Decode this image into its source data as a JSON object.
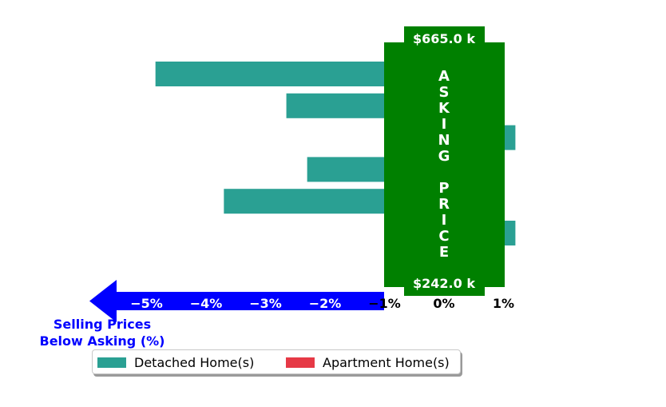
{
  "chart_data": {
    "type": "bar",
    "orientation": "horizontal",
    "xlim": [
      -5.5,
      1.2
    ],
    "x_ticks": [
      -5,
      -4,
      -3,
      -2,
      -1,
      0,
      1
    ],
    "x_tick_labels": [
      "−5%",
      "−4%",
      "−3%",
      "−2%",
      "−1%",
      "0%",
      "1%"
    ],
    "series": [
      {
        "name": "Detached Home(s)",
        "color": "#2aa093",
        "values": [
          -4.85,
          -2.65,
          1.2,
          -2.3,
          -3.7,
          1.2,
          null
        ]
      },
      {
        "name": "Apartment Home(s)",
        "color": "#e63946",
        "values": [
          null,
          null,
          null,
          null,
          null,
          null,
          -0.02
        ]
      }
    ],
    "asking_price_box": {
      "top_label": "$665.0 k",
      "bottom_label": "$242.0 k",
      "vertical_text": "ASKING PRICE",
      "color": "#008000"
    },
    "axis_annotation": {
      "line1": "Selling Prices",
      "line2": "Below Asking (%)",
      "color": "#0000ff"
    },
    "legend_position": "bottom-center"
  }
}
